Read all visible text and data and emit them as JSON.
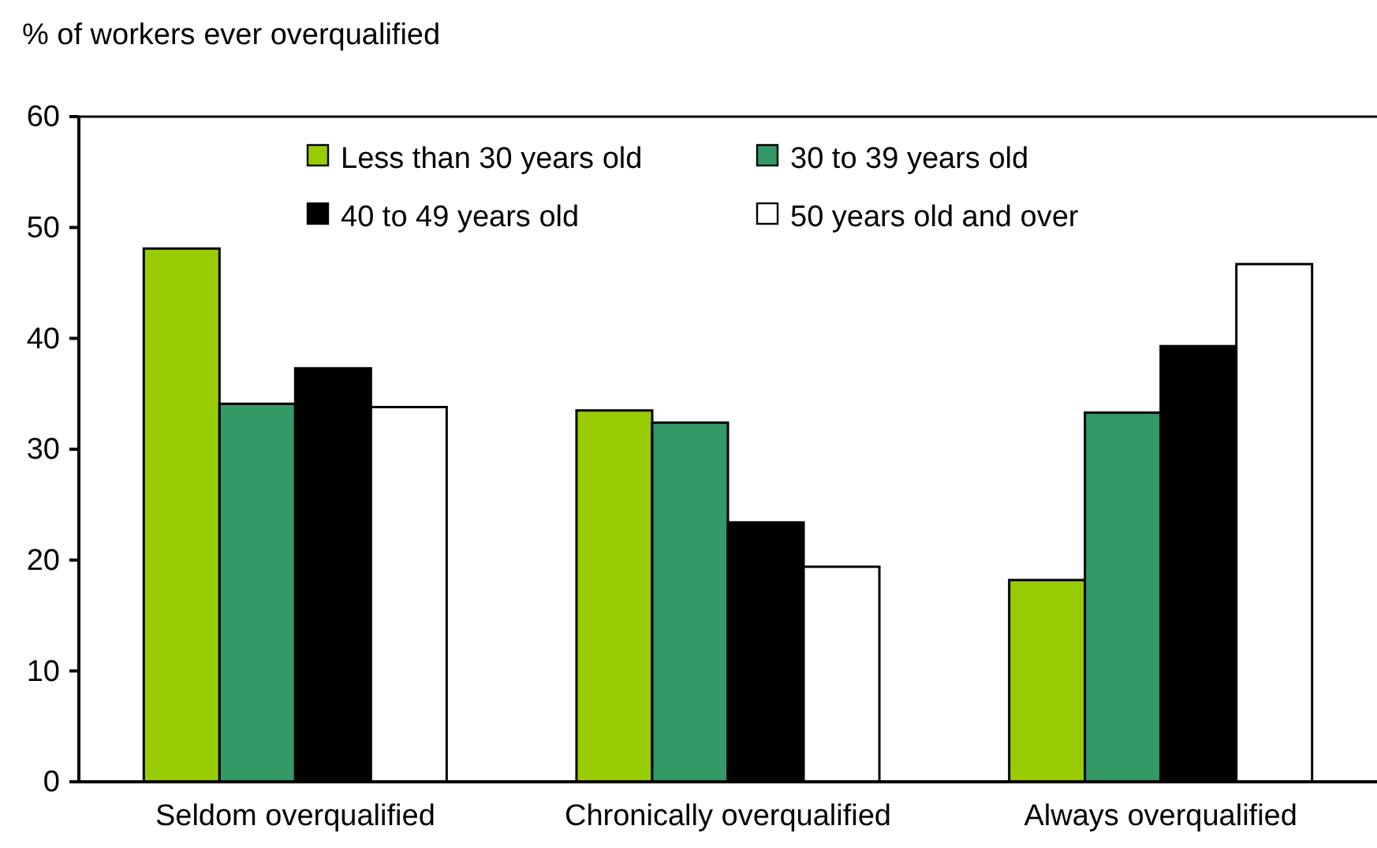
{
  "chart_data": {
    "type": "bar",
    "ylabel": "% of workers ever overqualified",
    "categories": [
      "Seldom overqualified",
      "Chronically overqualified",
      "Always overqualified"
    ],
    "series": [
      {
        "name": "Less than 30 years old",
        "color": "#99cc00",
        "values": [
          48.1,
          33.5,
          18.2
        ]
      },
      {
        "name": "30 to 39 years old",
        "color": "#339966",
        "values": [
          34.1,
          32.4,
          33.3
        ]
      },
      {
        "name": "40 to 49 years old",
        "color": "#000000",
        "values": [
          37.3,
          23.4,
          39.3
        ]
      },
      {
        "name": "50 years old and over",
        "color": "#ffffff",
        "values": [
          33.8,
          19.4,
          46.7
        ]
      }
    ],
    "ylim": [
      0,
      60
    ],
    "yticks": [
      0,
      10,
      20,
      30,
      40,
      50,
      60
    ],
    "legend": "top"
  }
}
